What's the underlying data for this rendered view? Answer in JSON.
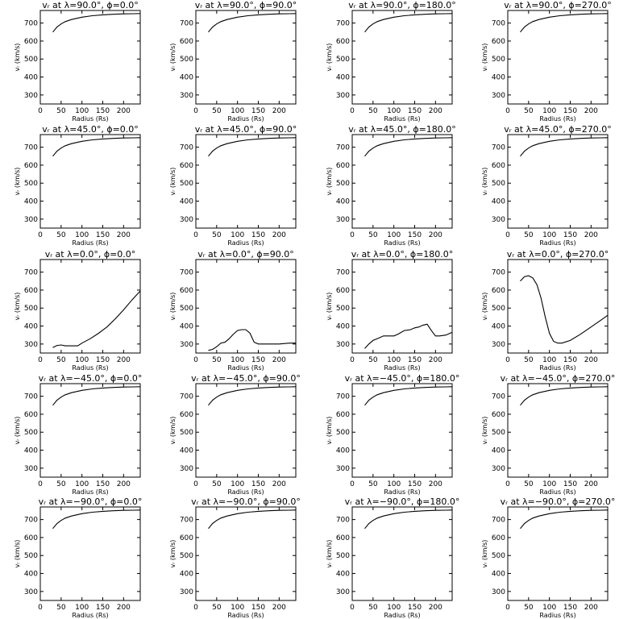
{
  "chart_data": {
    "type": "line",
    "rows": 5,
    "cols": 4,
    "xlim": [
      0,
      240
    ],
    "ylim": [
      250,
      770
    ],
    "xticks": [
      0,
      50,
      100,
      150,
      200
    ],
    "yticks": [
      300,
      400,
      500,
      600,
      700
    ],
    "xlabel": "Radius (Rs)",
    "ylabel": "vᵣ (km/s)",
    "panels": [
      {
        "title": "vᵣ at λ=90.0°, ϕ=0.0°",
        "x": [
          30,
          40,
          50,
          60,
          75,
          100,
          125,
          150,
          175,
          200,
          225,
          240
        ],
        "y": [
          650,
          678,
          695,
          708,
          720,
          733,
          741,
          746,
          749,
          751,
          752,
          753
        ]
      },
      {
        "title": "vᵣ at λ=90.0°, ϕ=90.0°",
        "x": [
          30,
          40,
          50,
          60,
          75,
          100,
          125,
          150,
          175,
          200,
          225,
          240
        ],
        "y": [
          650,
          678,
          695,
          708,
          720,
          733,
          741,
          746,
          749,
          751,
          752,
          753
        ]
      },
      {
        "title": "vᵣ at λ=90.0°, ϕ=180.0°",
        "x": [
          30,
          40,
          50,
          60,
          75,
          100,
          125,
          150,
          175,
          200,
          225,
          240
        ],
        "y": [
          650,
          678,
          695,
          708,
          720,
          733,
          741,
          746,
          749,
          751,
          752,
          753
        ]
      },
      {
        "title": "vᵣ at λ=90.0°, ϕ=270.0°",
        "x": [
          30,
          40,
          50,
          60,
          75,
          100,
          125,
          150,
          175,
          200,
          225,
          240
        ],
        "y": [
          650,
          678,
          695,
          708,
          720,
          733,
          741,
          746,
          749,
          751,
          752,
          753
        ]
      },
      {
        "title": "vᵣ at λ=45.0°, ϕ=0.0°",
        "x": [
          30,
          40,
          50,
          60,
          75,
          100,
          125,
          150,
          175,
          200,
          225,
          240
        ],
        "y": [
          650,
          678,
          695,
          708,
          720,
          733,
          741,
          746,
          749,
          751,
          752,
          753
        ]
      },
      {
        "title": "vᵣ at λ=45.0°, ϕ=90.0°",
        "x": [
          30,
          40,
          50,
          60,
          75,
          100,
          125,
          150,
          175,
          200,
          225,
          240
        ],
        "y": [
          650,
          678,
          695,
          708,
          720,
          733,
          741,
          746,
          749,
          751,
          752,
          753
        ]
      },
      {
        "title": "vᵣ at λ=45.0°, ϕ=180.0°",
        "x": [
          30,
          40,
          50,
          60,
          75,
          100,
          125,
          150,
          175,
          200,
          225,
          240
        ],
        "y": [
          650,
          678,
          695,
          708,
          720,
          733,
          741,
          746,
          749,
          751,
          752,
          753
        ]
      },
      {
        "title": "vᵣ at λ=45.0°, ϕ=270.0°",
        "x": [
          30,
          40,
          50,
          60,
          75,
          100,
          125,
          150,
          175,
          200,
          225,
          240
        ],
        "y": [
          650,
          678,
          695,
          708,
          720,
          733,
          741,
          746,
          749,
          751,
          752,
          753
        ]
      },
      {
        "title": "vᵣ at λ=0.0°, ϕ=0.0°",
        "x": [
          30,
          40,
          50,
          60,
          75,
          90,
          100,
          120,
          140,
          160,
          180,
          200,
          220,
          240
        ],
        "y": [
          280,
          292,
          295,
          290,
          290,
          290,
          305,
          330,
          360,
          395,
          440,
          490,
          545,
          595
        ]
      },
      {
        "title": "vᵣ at λ=0.0°, ϕ=90.0°",
        "x": [
          30,
          40,
          50,
          60,
          70,
          80,
          90,
          100,
          110,
          120,
          130,
          140,
          150,
          175,
          200,
          225,
          240
        ],
        "y": [
          265,
          270,
          285,
          305,
          310,
          330,
          355,
          375,
          380,
          380,
          360,
          310,
          300,
          300,
          300,
          305,
          305
        ]
      },
      {
        "title": "vᵣ at λ=0.0°, ϕ=180.0°",
        "x": [
          30,
          40,
          50,
          60,
          75,
          90,
          100,
          110,
          125,
          140,
          150,
          160,
          170,
          180,
          190,
          200,
          210,
          225,
          240
        ],
        "y": [
          275,
          300,
          320,
          330,
          345,
          345,
          345,
          355,
          375,
          380,
          390,
          395,
          405,
          410,
          375,
          345,
          345,
          350,
          365
        ]
      },
      {
        "title": "vᵣ at λ=0.0°, ϕ=270.0°",
        "x": [
          30,
          40,
          50,
          60,
          70,
          80,
          90,
          100,
          110,
          120,
          130,
          150,
          175,
          200,
          225,
          240
        ],
        "y": [
          650,
          675,
          680,
          668,
          630,
          555,
          450,
          360,
          315,
          305,
          305,
          320,
          355,
          395,
          435,
          460
        ]
      },
      {
        "title": "vᵣ at λ=−45.0°, ϕ=0.0°",
        "x": [
          30,
          40,
          50,
          60,
          75,
          100,
          125,
          150,
          175,
          200,
          225,
          240
        ],
        "y": [
          650,
          678,
          695,
          708,
          720,
          733,
          741,
          746,
          749,
          751,
          752,
          753
        ]
      },
      {
        "title": "vᵣ at λ=−45.0°, ϕ=90.0°",
        "x": [
          30,
          40,
          50,
          60,
          75,
          100,
          125,
          150,
          175,
          200,
          225,
          240
        ],
        "y": [
          650,
          678,
          695,
          708,
          720,
          733,
          741,
          746,
          749,
          751,
          752,
          753
        ]
      },
      {
        "title": "vᵣ at λ=−45.0°, ϕ=180.0°",
        "x": [
          30,
          40,
          50,
          60,
          75,
          100,
          125,
          150,
          175,
          200,
          225,
          240
        ],
        "y": [
          650,
          678,
          695,
          708,
          720,
          733,
          741,
          746,
          749,
          751,
          752,
          753
        ]
      },
      {
        "title": "vᵣ at λ=−45.0°, ϕ=270.0°",
        "x": [
          30,
          40,
          50,
          60,
          75,
          100,
          125,
          150,
          175,
          200,
          225,
          240
        ],
        "y": [
          650,
          678,
          695,
          708,
          720,
          733,
          741,
          746,
          749,
          751,
          752,
          753
        ]
      },
      {
        "title": "vᵣ at λ=−90.0°, ϕ=0.0°",
        "x": [
          30,
          40,
          50,
          60,
          75,
          100,
          125,
          150,
          175,
          200,
          225,
          240
        ],
        "y": [
          650,
          678,
          695,
          708,
          720,
          733,
          741,
          746,
          749,
          751,
          752,
          753
        ]
      },
      {
        "title": "vᵣ at λ=−90.0°, ϕ=90.0°",
        "x": [
          30,
          40,
          50,
          60,
          75,
          100,
          125,
          150,
          175,
          200,
          225,
          240
        ],
        "y": [
          650,
          678,
          695,
          708,
          720,
          733,
          741,
          746,
          749,
          751,
          752,
          753
        ]
      },
      {
        "title": "vᵣ at λ=−90.0°, ϕ=180.0°",
        "x": [
          30,
          40,
          50,
          60,
          75,
          100,
          125,
          150,
          175,
          200,
          225,
          240
        ],
        "y": [
          650,
          678,
          695,
          708,
          720,
          733,
          741,
          746,
          749,
          751,
          752,
          753
        ]
      },
      {
        "title": "vᵣ at λ=−90.0°, ϕ=270.0°",
        "x": [
          30,
          40,
          50,
          60,
          75,
          100,
          125,
          150,
          175,
          200,
          225,
          240
        ],
        "y": [
          650,
          678,
          695,
          708,
          720,
          733,
          741,
          746,
          749,
          751,
          752,
          753
        ]
      }
    ]
  }
}
